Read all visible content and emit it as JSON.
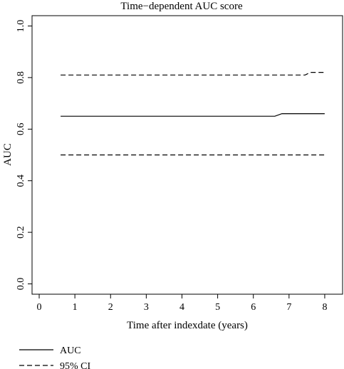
{
  "chart_data": {
    "type": "line",
    "title": "Time−dependent AUC score",
    "xlabel": "Time after indexdate (years)",
    "ylabel": "AUC",
    "xlim": [
      -0.2,
      8.5
    ],
    "ylim": [
      -0.04,
      1.04
    ],
    "x_ticks": [
      0,
      1,
      2,
      3,
      4,
      5,
      6,
      7,
      8
    ],
    "x_tick_labels": [
      "0",
      "1",
      "2",
      "3",
      "4",
      "5",
      "6",
      "7",
      "8"
    ],
    "y_ticks": [
      0.0,
      0.2,
      0.4,
      0.6,
      0.8,
      1.0
    ],
    "y_tick_labels": [
      "0.0",
      "0.2",
      "0.4",
      "0.6",
      "0.8",
      "1.0"
    ],
    "grid": false,
    "legend_position": "bottom-left",
    "colors": {
      "line": "#000000",
      "axis": "#000000"
    },
    "series": [
      {
        "name": "AUC",
        "style": "solid",
        "x": [
          0.6,
          6.6,
          6.8,
          8.0
        ],
        "y": [
          0.65,
          0.65,
          0.66,
          0.66
        ]
      },
      {
        "name": "95% CI",
        "style": "dashed",
        "x": [
          0.6,
          7.45,
          7.6,
          8.0
        ],
        "y": [
          0.81,
          0.81,
          0.82,
          0.82
        ]
      },
      {
        "name": "",
        "legend": false,
        "style": "dashed",
        "x": [
          0.6,
          8.0
        ],
        "y": [
          0.5,
          0.5
        ]
      }
    ]
  }
}
